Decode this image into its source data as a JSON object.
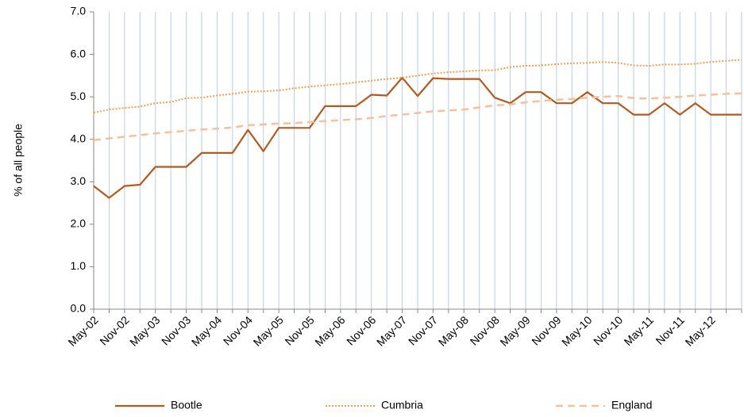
{
  "chart_data": {
    "type": "line",
    "ylabel": "% of all people",
    "categories": [
      "May-02",
      null,
      "Nov-02",
      null,
      "May-03",
      null,
      "Nov-03",
      null,
      "May-04",
      null,
      "Nov-04",
      null,
      "May-05",
      null,
      "Nov-05",
      null,
      "May-06",
      null,
      "Nov-06",
      null,
      "May-07",
      null,
      "Nov-07",
      null,
      "May-08",
      null,
      "Nov-08",
      null,
      "May-09",
      null,
      "Nov-09",
      null,
      "May-10",
      null,
      "Nov-10",
      null,
      "May-11",
      null,
      "Nov-11",
      null,
      "May-12",
      null,
      null
    ],
    "series": [
      {
        "name": "Bootle",
        "color": "#b35a1f",
        "dash": "solid",
        "values": [
          2.9,
          2.62,
          2.9,
          2.93,
          3.35,
          3.35,
          3.35,
          3.68,
          3.68,
          3.68,
          4.22,
          3.72,
          4.27,
          4.27,
          4.27,
          4.78,
          4.78,
          4.78,
          5.05,
          5.03,
          5.45,
          5.02,
          5.44,
          5.42,
          5.42,
          5.42,
          4.98,
          4.85,
          5.11,
          5.11,
          4.85,
          4.85,
          5.11,
          4.85,
          4.85,
          4.58,
          4.58,
          4.85,
          4.58,
          4.85,
          4.58,
          4.58,
          4.58
        ]
      },
      {
        "name": "Cumbria",
        "color": "#f0a050",
        "dash": "dotted",
        "values": [
          4.63,
          4.7,
          4.74,
          4.77,
          4.85,
          4.88,
          4.97,
          4.98,
          5.03,
          5.07,
          5.12,
          5.13,
          5.15,
          5.2,
          5.24,
          5.27,
          5.3,
          5.34,
          5.38,
          5.42,
          5.45,
          5.5,
          5.55,
          5.58,
          5.6,
          5.62,
          5.63,
          5.7,
          5.73,
          5.74,
          5.77,
          5.79,
          5.8,
          5.82,
          5.8,
          5.74,
          5.73,
          5.76,
          5.76,
          5.78,
          5.82,
          5.85,
          5.87
        ]
      },
      {
        "name": "England",
        "color": "#f5c09a",
        "dash": "dashed",
        "values": [
          3.98,
          4.02,
          4.06,
          4.1,
          4.14,
          4.17,
          4.2,
          4.23,
          4.25,
          4.28,
          4.33,
          4.35,
          4.37,
          4.38,
          4.41,
          4.43,
          4.45,
          4.47,
          4.5,
          4.55,
          4.58,
          4.62,
          4.66,
          4.68,
          4.7,
          4.75,
          4.8,
          4.82,
          4.87,
          4.9,
          4.93,
          4.95,
          4.98,
          5.0,
          5.02,
          4.97,
          4.96,
          4.98,
          5.0,
          5.03,
          5.05,
          5.07,
          5.08
        ]
      }
    ],
    "ylim": [
      0,
      7
    ],
    "yticks": [
      {
        "value": 0,
        "label": "0.0"
      },
      {
        "value": 1,
        "label": "1.0"
      },
      {
        "value": 2,
        "label": "2.0"
      },
      {
        "value": 3,
        "label": "3.0"
      },
      {
        "value": 4,
        "label": "4.0"
      },
      {
        "value": 5,
        "label": "5.0"
      },
      {
        "value": 6,
        "label": "6.0"
      },
      {
        "value": 7,
        "label": "7.0"
      }
    ],
    "grid": true,
    "grid_color": "#b8cce4",
    "legend": "bottom"
  }
}
